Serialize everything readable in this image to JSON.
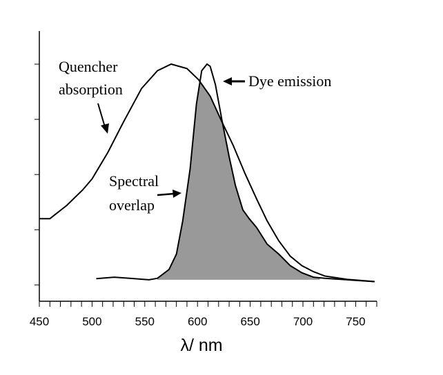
{
  "chart_data": {
    "type": "line",
    "title": "",
    "xlabel": "λ/ nm",
    "ylabel": "",
    "xlim": [
      450,
      770
    ],
    "ylim": [
      -0.074,
      1.15
    ],
    "x_ticks": [
      450,
      500,
      550,
      600,
      650,
      700,
      750
    ],
    "x_minor_step": 10,
    "y_ticks": [
      0,
      0.25,
      0.5,
      0.75,
      1.0
    ],
    "y_tick_labels_shown": false,
    "grid": false,
    "legend": "none",
    "series": [
      {
        "name": "Quencher absorption",
        "x": [
          450,
          460,
          476,
          491,
          500,
          515,
          530,
          547,
          562,
          575,
          590,
          601,
          612,
          623,
          634,
          645,
          656,
          666,
          677,
          688,
          699,
          710,
          721,
          742,
          768
        ],
        "y": [
          0.3,
          0.3,
          0.36,
          0.43,
          0.48,
          0.6,
          0.74,
          0.89,
          0.97,
          1.0,
          0.98,
          0.93,
          0.855,
          0.74,
          0.63,
          0.505,
          0.39,
          0.29,
          0.2,
          0.13,
          0.087,
          0.06,
          0.04,
          0.025,
          0.015
        ]
      },
      {
        "name": "Dye emission",
        "x": [
          504,
          521,
          536,
          554,
          562,
          573,
          580,
          586,
          593,
          599,
          604,
          609,
          612,
          617,
          623,
          630,
          636,
          643,
          649,
          656,
          666,
          677,
          688,
          699,
          710,
          721,
          742,
          768
        ],
        "y": [
          0.028,
          0.035,
          0.03,
          0.023,
          0.03,
          0.07,
          0.14,
          0.29,
          0.525,
          0.82,
          0.97,
          1.0,
          0.99,
          0.907,
          0.75,
          0.58,
          0.45,
          0.34,
          0.3,
          0.26,
          0.185,
          0.14,
          0.087,
          0.055,
          0.035,
          0.03,
          0.023,
          0.015
        ]
      }
    ],
    "overlap": {
      "name": "Spectral overlap",
      "baseline": 0.023,
      "fill": "#999999",
      "x_range": [
        562,
        716
      ]
    },
    "annotations": [
      {
        "lines": [
          "Quencher",
          "absorption"
        ],
        "target": "Quencher absorption"
      },
      {
        "lines": [
          "Dye emission"
        ],
        "target": "Dye emission"
      },
      {
        "lines": [
          "Spectral",
          "overlap"
        ],
        "target": "Spectral overlap"
      }
    ]
  }
}
